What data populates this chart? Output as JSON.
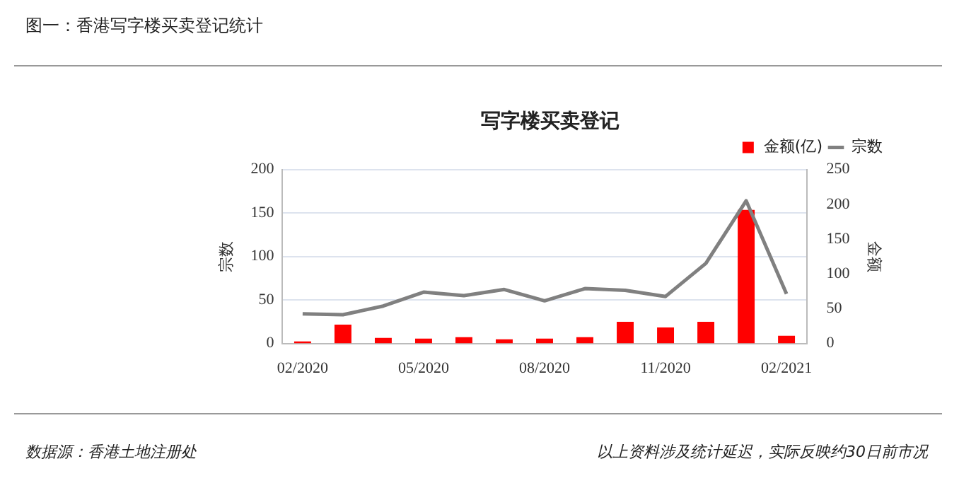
{
  "chart_data": {
    "type": "bar",
    "title": "图一：香港写字楼买卖登记统计",
    "subtitle": "写字楼买卖登记",
    "ylabel": "宗数",
    "y2label": "金额",
    "categories": [
      "02/2020",
      null,
      null,
      "05/2020",
      null,
      null,
      "08/2020",
      null,
      null,
      "11/2020",
      null,
      null,
      "02/2021"
    ],
    "series": [
      {
        "name": "金额(亿)",
        "axis": "y2",
        "color": "#ff0000",
        "values": [
          3,
          27,
          8,
          7,
          9,
          6,
          7,
          9,
          31,
          23,
          31,
          192,
          11
        ]
      },
      {
        "name": "宗数",
        "type": "line",
        "color": "#808080",
        "values": [
          34,
          33,
          43,
          59,
          55,
          62,
          49,
          63,
          61,
          54,
          92,
          164,
          57
        ]
      }
    ],
    "ylim": [
      0,
      200
    ],
    "yticks": [
      0,
      50,
      100,
      150,
      200
    ],
    "y2lim": [
      0,
      250
    ],
    "y2ticks": [
      0,
      50,
      100,
      150,
      200,
      250
    ],
    "grid": "y",
    "legend": "top right",
    "marker": "none",
    "annotations": [
      "数据源：香港土地注册处",
      "以上资料涉及统计延迟，实际反映约30日前市况"
    ]
  }
}
